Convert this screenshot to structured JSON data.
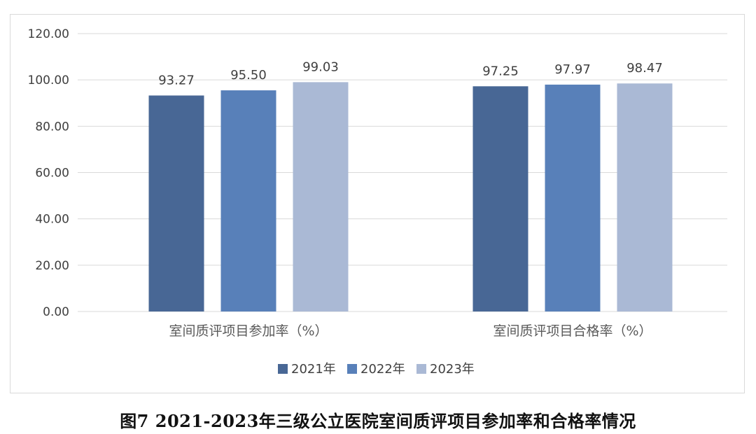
{
  "chart_data": {
    "type": "bar",
    "categories": [
      "室间质评项目参加率（%）",
      "室间质评项目合格率（%）"
    ],
    "series": [
      {
        "name": "2021年",
        "color": "#486795",
        "values": [
          93.27,
          97.25
        ],
        "labels": [
          "93.27",
          "97.25"
        ]
      },
      {
        "name": "2022年",
        "color": "#5880b9",
        "values": [
          95.5,
          97.97
        ],
        "labels": [
          "95.50",
          "97.97"
        ]
      },
      {
        "name": "2023年",
        "color": "#aab9d5",
        "values": [
          99.03,
          98.47
        ],
        "labels": [
          "99.03",
          "98.47"
        ]
      }
    ],
    "ylim": [
      0,
      120
    ],
    "yticks": [
      "0.00",
      "20.00",
      "40.00",
      "60.00",
      "80.00",
      "100.00",
      "120.00"
    ],
    "ytick_values": [
      0,
      20,
      40,
      60,
      80,
      100,
      120
    ],
    "grid": true,
    "legend_position": "bottom"
  },
  "caption": "图7  2021-2023年三级公立医院室间质评项目参加率和合格率情况"
}
